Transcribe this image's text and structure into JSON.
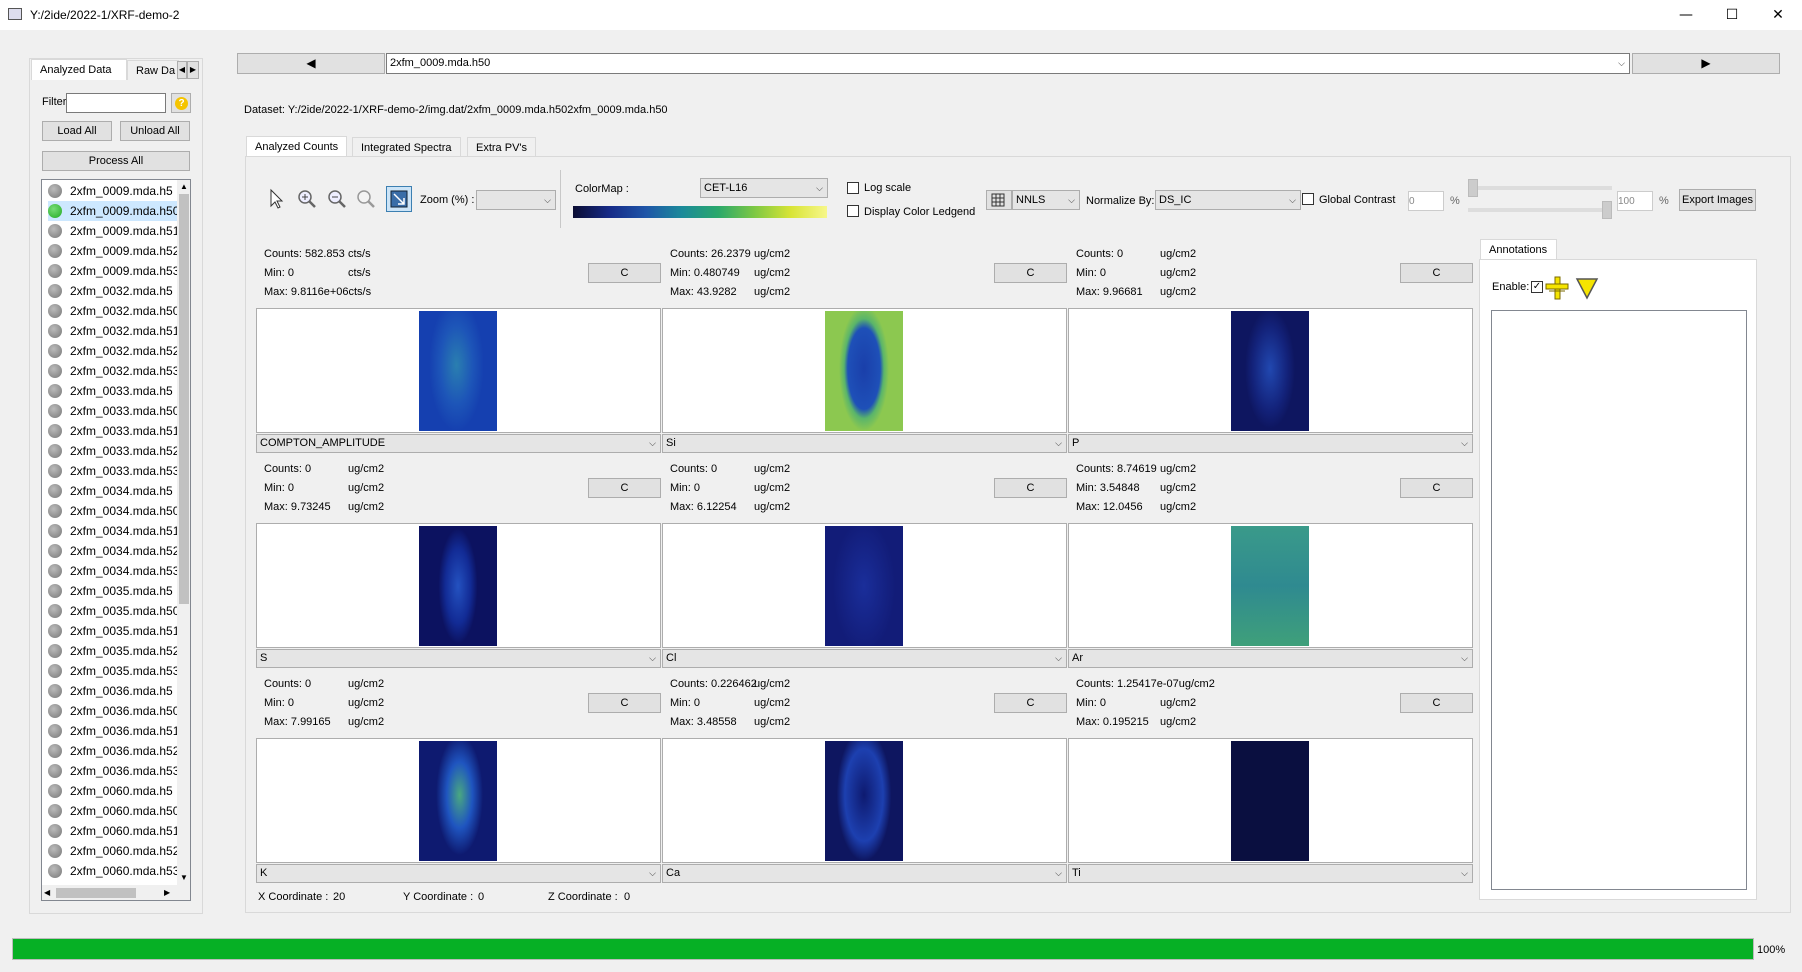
{
  "window": {
    "title": "Y:/2ide/2022-1/XRF-demo-2"
  },
  "left": {
    "tabs": [
      "Analyzed Data",
      "Raw Da"
    ],
    "filter_label": "Filter",
    "filter_value": "",
    "load_all": "Load All",
    "unload_all": "Unload All",
    "process_all": "Process All",
    "files": [
      {
        "name": "2xfm_0009.mda.h5",
        "loaded": false
      },
      {
        "name": "2xfm_0009.mda.h50",
        "loaded": true
      },
      {
        "name": "2xfm_0009.mda.h51",
        "loaded": false
      },
      {
        "name": "2xfm_0009.mda.h52",
        "loaded": false
      },
      {
        "name": "2xfm_0009.mda.h53",
        "loaded": false
      },
      {
        "name": "2xfm_0032.mda.h5",
        "loaded": false
      },
      {
        "name": "2xfm_0032.mda.h50",
        "loaded": false
      },
      {
        "name": "2xfm_0032.mda.h51",
        "loaded": false
      },
      {
        "name": "2xfm_0032.mda.h52",
        "loaded": false
      },
      {
        "name": "2xfm_0032.mda.h53",
        "loaded": false
      },
      {
        "name": "2xfm_0033.mda.h5",
        "loaded": false
      },
      {
        "name": "2xfm_0033.mda.h50",
        "loaded": false
      },
      {
        "name": "2xfm_0033.mda.h51",
        "loaded": false
      },
      {
        "name": "2xfm_0033.mda.h52",
        "loaded": false
      },
      {
        "name": "2xfm_0033.mda.h53",
        "loaded": false
      },
      {
        "name": "2xfm_0034.mda.h5",
        "loaded": false
      },
      {
        "name": "2xfm_0034.mda.h50",
        "loaded": false
      },
      {
        "name": "2xfm_0034.mda.h51",
        "loaded": false
      },
      {
        "name": "2xfm_0034.mda.h52",
        "loaded": false
      },
      {
        "name": "2xfm_0034.mda.h53",
        "loaded": false
      },
      {
        "name": "2xfm_0035.mda.h5",
        "loaded": false
      },
      {
        "name": "2xfm_0035.mda.h50",
        "loaded": false
      },
      {
        "name": "2xfm_0035.mda.h51",
        "loaded": false
      },
      {
        "name": "2xfm_0035.mda.h52",
        "loaded": false
      },
      {
        "name": "2xfm_0035.mda.h53",
        "loaded": false
      },
      {
        "name": "2xfm_0036.mda.h5",
        "loaded": false
      },
      {
        "name": "2xfm_0036.mda.h50",
        "loaded": false
      },
      {
        "name": "2xfm_0036.mda.h51",
        "loaded": false
      },
      {
        "name": "2xfm_0036.mda.h52",
        "loaded": false
      },
      {
        "name": "2xfm_0036.mda.h53",
        "loaded": false
      },
      {
        "name": "2xfm_0060.mda.h5",
        "loaded": false
      },
      {
        "name": "2xfm_0060.mda.h50",
        "loaded": false
      },
      {
        "name": "2xfm_0060.mda.h51",
        "loaded": false
      },
      {
        "name": "2xfm_0060.mda.h52",
        "loaded": false
      },
      {
        "name": "2xfm_0060.mda.h53",
        "loaded": false
      }
    ]
  },
  "nav": {
    "prev": "◀",
    "next": "▶",
    "current": "2xfm_0009.mda.h50"
  },
  "dataset": "Dataset: Y:/2ide/2022-1/XRF-demo-2/img.dat/2xfm_0009.mda.h502xfm_0009.mda.h50",
  "tabs": [
    "Analyzed Counts",
    "Integrated Spectra",
    "Extra PV's"
  ],
  "toolbar": {
    "zoom_label": "Zoom (%) :",
    "zoom_value": "",
    "colormap_label": "ColorMap :",
    "colormap_value": "CET-L16",
    "log_scale": "Log scale",
    "display_legend": "Display Color Ledgend",
    "fit": "NNLS",
    "normalize_label": "Normalize By:",
    "normalize_value": "DS_IC",
    "global_contrast": "Global Contrast",
    "min_pct": "0",
    "max_pct": "100",
    "pct": "%",
    "export": "Export Images"
  },
  "cells": [
    {
      "counts": "Counts: 582.853",
      "counts_u": "cts/s",
      "min": "Min:  0",
      "min_u": "cts/s",
      "max": "Max:  9.8116e+06cts/s",
      "max_u": "",
      "element": "COMPTON_AMPLITUDE",
      "btn": "C"
    },
    {
      "counts": "Counts: 26.2379",
      "counts_u": "ug/cm2",
      "min": "Min:  0.480749",
      "min_u": "ug/cm2",
      "max": "Max:  43.9282",
      "max_u": "ug/cm2",
      "element": "Si",
      "btn": "C"
    },
    {
      "counts": "Counts: 0",
      "counts_u": "ug/cm2",
      "min": "Min:  0",
      "min_u": "ug/cm2",
      "max": "Max:  9.96681",
      "max_u": "ug/cm2",
      "element": "P",
      "btn": "C"
    },
    {
      "counts": "Counts: 0",
      "counts_u": "ug/cm2",
      "min": "Min:  0",
      "min_u": "ug/cm2",
      "max": "Max:  9.73245",
      "max_u": "ug/cm2",
      "element": "S",
      "btn": "C"
    },
    {
      "counts": "Counts: 0",
      "counts_u": "ug/cm2",
      "min": "Min:  0",
      "min_u": "ug/cm2",
      "max": "Max:  6.12254",
      "max_u": "ug/cm2",
      "element": "Cl",
      "btn": "C"
    },
    {
      "counts": "Counts: 8.74619",
      "counts_u": "ug/cm2",
      "min": "Min:  3.54848",
      "min_u": "ug/cm2",
      "max": "Max:  12.0456",
      "max_u": "ug/cm2",
      "element": "Ar",
      "btn": "C"
    },
    {
      "counts": "Counts: 0",
      "counts_u": "ug/cm2",
      "min": "Min:  0",
      "min_u": "ug/cm2",
      "max": "Max:  7.99165",
      "max_u": "ug/cm2",
      "element": "K",
      "btn": "C"
    },
    {
      "counts": "Counts: 0.226462",
      "counts_u": "ug/cm2",
      "min": "Min:  0",
      "min_u": "ug/cm2",
      "max": "Max:  3.48558",
      "max_u": "ug/cm2",
      "element": "Ca",
      "btn": "C"
    },
    {
      "counts": "Counts: 1.25417e-07ug/cm2",
      "counts_u": "",
      "min": "Min:  0",
      "min_u": "ug/cm2",
      "max": "Max:  0.195215",
      "max_u": "ug/cm2",
      "element": "Ti",
      "btn": "C"
    }
  ],
  "coords": {
    "x_label": "X Coordinate :",
    "x": "20",
    "y_label": "Y Coordinate :",
    "y": "0",
    "z_label": "Z Coordinate :",
    "z": "0"
  },
  "annotations": {
    "tab": "Annotations",
    "enable": "Enable:"
  },
  "progress": {
    "value": 100,
    "label": "100%",
    "color": "#06b025"
  }
}
